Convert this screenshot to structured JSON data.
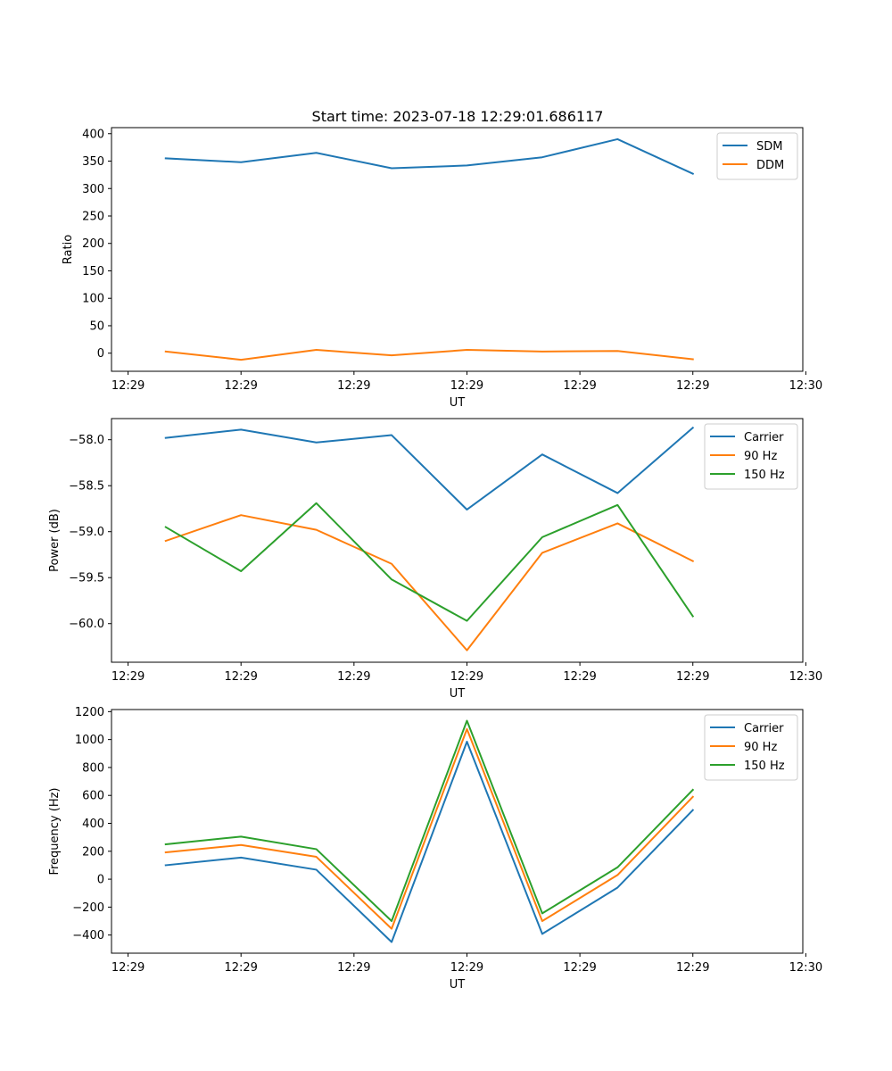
{
  "figure": {
    "title": "Start time: 2023-07-18 12:29:01.686117"
  },
  "chart_data": [
    {
      "type": "line",
      "title": "Start time: 2023-07-18 12:29:01.686117",
      "xlabel": "UT",
      "ylabel": "Ratio",
      "x": [
        1,
        2,
        3,
        4,
        5,
        6,
        7,
        8
      ],
      "xlim": [
        0.28,
        9.46
      ],
      "ylim": [
        -33,
        411
      ],
      "xtick_positions": [
        0.5,
        2,
        3.5,
        5,
        6.5,
        8,
        9.5
      ],
      "xtick_labels": [
        "12:29",
        "12:29",
        "12:29",
        "12:29",
        "12:29",
        "12:29",
        "12:30"
      ],
      "ytick_values": [
        0,
        50,
        100,
        150,
        200,
        250,
        300,
        350,
        400
      ],
      "ytick_labels": [
        "0",
        "50",
        "100",
        "150",
        "200",
        "250",
        "300",
        "350",
        "400"
      ],
      "legend_position": "upper right",
      "series": [
        {
          "name": "SDM",
          "color": "#1f77b4",
          "values": [
            355,
            348,
            365,
            337,
            342,
            357,
            390,
            327
          ]
        },
        {
          "name": "DDM",
          "color": "#ff7f0e",
          "values": [
            3,
            -12,
            6,
            -4,
            6,
            3,
            4,
            -11
          ]
        }
      ]
    },
    {
      "type": "line",
      "title": "",
      "xlabel": "UT",
      "ylabel": "Power (dB)",
      "x": [
        1,
        2,
        3,
        4,
        5,
        6,
        7,
        8
      ],
      "xlim": [
        0.28,
        9.46
      ],
      "ylim": [
        -60.42,
        -57.77
      ],
      "xtick_positions": [
        0.5,
        2,
        3.5,
        5,
        6.5,
        8,
        9.5
      ],
      "xtick_labels": [
        "12:29",
        "12:29",
        "12:29",
        "12:29",
        "12:29",
        "12:29",
        "12:30"
      ],
      "ytick_values": [
        -60.0,
        -59.5,
        -59.0,
        -58.5,
        -58.0
      ],
      "ytick_labels": [
        "−60.0",
        "−59.5",
        "−59.0",
        "−58.5",
        "−58.0"
      ],
      "legend_position": "upper right",
      "series": [
        {
          "name": "Carrier",
          "color": "#1f77b4",
          "values": [
            -57.98,
            -57.89,
            -58.03,
            -57.95,
            -58.76,
            -58.16,
            -58.58,
            -57.87
          ]
        },
        {
          "name": "90 Hz",
          "color": "#ff7f0e",
          "values": [
            -59.1,
            -58.82,
            -58.98,
            -59.35,
            -60.29,
            -59.23,
            -58.91,
            -59.32
          ]
        },
        {
          "name": "150 Hz",
          "color": "#2ca02c",
          "values": [
            -58.95,
            -59.43,
            -58.69,
            -59.52,
            -59.97,
            -59.06,
            -58.71,
            -59.92
          ]
        }
      ]
    },
    {
      "type": "line",
      "title": "",
      "xlabel": "UT",
      "ylabel": "Frequency (Hz)",
      "x": [
        1,
        2,
        3,
        4,
        5,
        6,
        7,
        8
      ],
      "xlim": [
        0.28,
        9.46
      ],
      "ylim": [
        -530,
        1215
      ],
      "xtick_positions": [
        0.5,
        2,
        3.5,
        5,
        6.5,
        8,
        9.5
      ],
      "xtick_labels": [
        "12:29",
        "12:29",
        "12:29",
        "12:29",
        "12:29",
        "12:29",
        "12:30"
      ],
      "ytick_values": [
        -400,
        -200,
        0,
        200,
        400,
        600,
        800,
        1000,
        1200
      ],
      "ytick_labels": [
        "−400",
        "−200",
        "0",
        "200",
        "400",
        "600",
        "800",
        "1000",
        "1200"
      ],
      "legend_position": "upper right",
      "series": [
        {
          "name": "Carrier",
          "color": "#1f77b4",
          "values": [
            100,
            155,
            68,
            -450,
            985,
            -392,
            -60,
            495
          ]
        },
        {
          "name": "90 Hz",
          "color": "#ff7f0e",
          "values": [
            192,
            245,
            160,
            -355,
            1075,
            -300,
            30,
            590
          ]
        },
        {
          "name": "150 Hz",
          "color": "#2ca02c",
          "values": [
            250,
            305,
            215,
            -300,
            1135,
            -245,
            85,
            640
          ]
        }
      ]
    }
  ]
}
